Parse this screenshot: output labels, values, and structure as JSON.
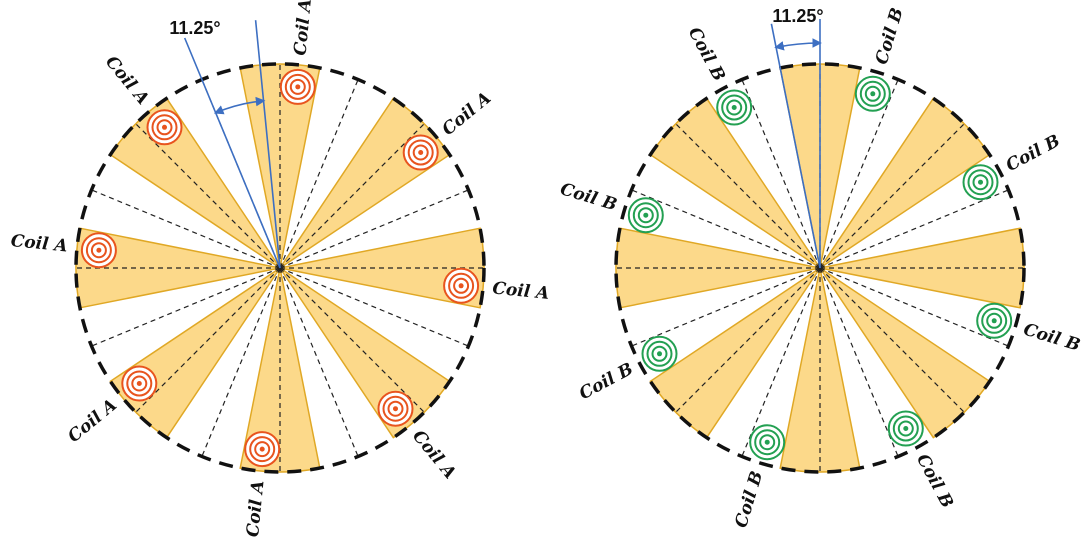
{
  "diagrams": [
    {
      "id": "A",
      "angle_label": "11.25°",
      "coil_label": "Coil A",
      "coil_color": "#e8541e",
      "sector_color": "#fcd98a",
      "sector_stroke": "#e0a825",
      "sector_angles_deg": [
        0,
        45,
        90,
        135,
        180,
        225,
        270,
        315
      ],
      "coil_angles_deg": [
        5.625,
        50.625,
        95.625,
        140.625,
        185.625,
        230.625,
        275.625,
        320.625
      ]
    },
    {
      "id": "B",
      "angle_label": "11.25°",
      "coil_label": "Coil B",
      "coil_color": "#23a052",
      "sector_color": "#fcd98a",
      "sector_stroke": "#e0a825",
      "sector_angles_deg": [
        0,
        45,
        90,
        135,
        180,
        225,
        270,
        315
      ],
      "coil_angles_deg": [
        16.875,
        61.875,
        106.875,
        151.875,
        196.875,
        241.875,
        286.875,
        331.875
      ]
    }
  ]
}
